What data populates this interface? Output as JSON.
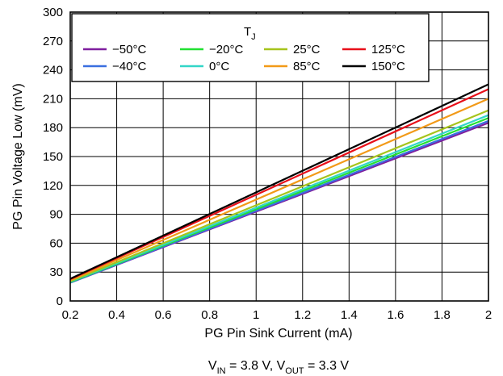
{
  "chart_data": {
    "type": "line",
    "xlabel": "PG Pin Sink Current (mA)",
    "ylabel": "PG Pin Voltage Low (mV)",
    "xlim": [
      0.2,
      2
    ],
    "ylim": [
      0,
      300
    ],
    "x_ticks": [
      "0.2",
      "0.4",
      "0.6",
      "0.8",
      "1",
      "1.2",
      "1.4",
      "1.6",
      "1.8",
      "2"
    ],
    "y_ticks": [
      "0",
      "30",
      "60",
      "90",
      "120",
      "150",
      "180",
      "210",
      "240",
      "270",
      "300"
    ],
    "grid": true,
    "legend": {
      "title": "T",
      "title_sub": "J",
      "placement": "top-left"
    },
    "caption": {
      "vin": "V",
      "vin_sub": "IN",
      "vin_value": " = 3.8 V, ",
      "vout": "V",
      "vout_sub": "OUT",
      "vout_value": " = 3.3 V"
    },
    "x": [
      0.2,
      2.0
    ],
    "series": [
      {
        "name": "−50°C",
        "color": "#7f1f9f",
        "values": [
          19,
          185
        ]
      },
      {
        "name": "−40°C",
        "color": "#3a6fe0",
        "values": [
          19,
          187
        ]
      },
      {
        "name": "−20°C",
        "color": "#22e033",
        "values": [
          19.5,
          190
        ]
      },
      {
        "name": "0°C",
        "color": "#33d6c8",
        "values": [
          20,
          193
        ]
      },
      {
        "name": "25°C",
        "color": "#a6c41c",
        "values": [
          20.5,
          198
        ]
      },
      {
        "name": "85°C",
        "color": "#f29a18",
        "values": [
          21.5,
          210
        ]
      },
      {
        "name": "125°C",
        "color": "#e8101a",
        "values": [
          22.5,
          220
        ]
      },
      {
        "name": "150°C",
        "color": "#000000",
        "values": [
          23,
          225
        ]
      }
    ]
  }
}
